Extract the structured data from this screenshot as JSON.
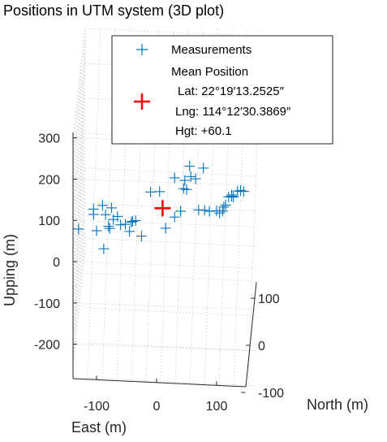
{
  "chart_data": {
    "type": "scatter",
    "title": "Positions in UTM system (3D plot)",
    "xlabel": "East (m)",
    "ylabel": "North (m)",
    "zlabel": "Upping (m)",
    "xlim": [
      -130,
      150
    ],
    "ylim": [
      -120,
      120
    ],
    "zlim": [
      -260,
      300
    ],
    "z_ticks": [
      "300",
      "200",
      "100",
      "0",
      "-100",
      "-200"
    ],
    "z_tick_values": [
      300,
      200,
      100,
      0,
      -100,
      -200
    ],
    "x_ticks": [
      "-100",
      "0",
      "100"
    ],
    "x_tick_values": [
      -100,
      0,
      100
    ],
    "y_ticks": [
      "100",
      "0",
      "-100"
    ],
    "y_tick_values": [
      100,
      0,
      -100
    ],
    "grid": true,
    "legend_position": "top-right",
    "series": [
      {
        "name": "Measurements",
        "marker": "+",
        "color": "#0072BD",
        "points": [
          {
            "e": -130,
            "u": 70
          },
          {
            "e": -105,
            "u": 120
          },
          {
            "e": -105,
            "u": 107
          },
          {
            "e": -100,
            "u": 68
          },
          {
            "e": -90,
            "u": 130
          },
          {
            "e": -88,
            "u": 25
          },
          {
            "e": -85,
            "u": 108
          },
          {
            "e": -80,
            "u": 80
          },
          {
            "e": -78,
            "u": 75
          },
          {
            "e": -75,
            "u": 125
          },
          {
            "e": -72,
            "u": 97
          },
          {
            "e": -65,
            "u": 105
          },
          {
            "e": -60,
            "u": 85
          },
          {
            "e": -52,
            "u": 87
          },
          {
            "e": -45,
            "u": 70
          },
          {
            "e": -42,
            "u": 93
          },
          {
            "e": -40,
            "u": 95
          },
          {
            "e": -35,
            "u": 97
          },
          {
            "e": -25,
            "u": 60
          },
          {
            "e": -10,
            "u": 168
          },
          {
            "e": 5,
            "u": 170
          },
          {
            "e": 15,
            "u": 82
          },
          {
            "e": 30,
            "u": 110
          },
          {
            "e": 30,
            "u": 205
          },
          {
            "e": 40,
            "u": 125
          },
          {
            "e": 45,
            "u": 180
          },
          {
            "e": 47,
            "u": 200
          },
          {
            "e": 50,
            "u": 178
          },
          {
            "e": 55,
            "u": 235
          },
          {
            "e": 57,
            "u": 210
          },
          {
            "e": 65,
            "u": 205
          },
          {
            "e": 70,
            "u": 130
          },
          {
            "e": 78,
            "u": 232
          },
          {
            "e": 80,
            "u": 130
          },
          {
            "e": 88,
            "u": 128
          },
          {
            "e": 100,
            "u": 130
          },
          {
            "e": 105,
            "u": 125
          },
          {
            "e": 110,
            "u": 130
          },
          {
            "e": 112,
            "u": 140
          },
          {
            "e": 115,
            "u": 145
          },
          {
            "e": 120,
            "u": 165
          },
          {
            "e": 125,
            "u": 170
          },
          {
            "e": 128,
            "u": 165
          },
          {
            "e": 135,
            "u": 180
          },
          {
            "e": 140,
            "u": 182
          },
          {
            "e": 145,
            "u": 180
          },
          {
            "e": 125,
            "u": 167
          }
        ]
      },
      {
        "name": "Mean Position",
        "marker": "+",
        "color": "#FF0000",
        "points": [
          {
            "e": 10,
            "u": 130
          }
        ]
      }
    ],
    "legend": {
      "measurements_label": "Measurements",
      "mean_label": "Mean Position",
      "lat_line": "Lat: 22°19′13.2525″",
      "lng_line": "Lng: 114°12′30.3869″",
      "hgt_line": "Hgt: +60.1"
    }
  }
}
